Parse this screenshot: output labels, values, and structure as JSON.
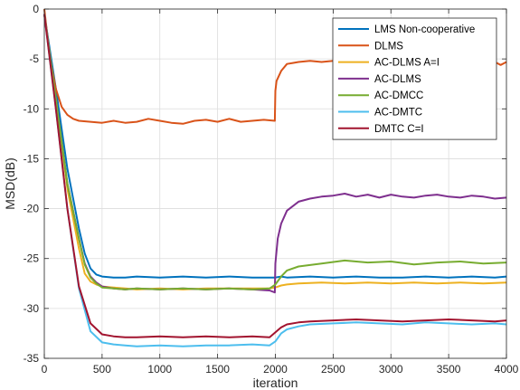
{
  "chart_data": {
    "type": "line",
    "xlabel": "iteration",
    "ylabel": "MSD(dB)",
    "xlim": [
      0,
      4000
    ],
    "ylim": [
      -35,
      0
    ],
    "xticks": [
      0,
      500,
      1000,
      1500,
      2000,
      2500,
      3000,
      3500,
      4000
    ],
    "yticks": [
      -35,
      -30,
      -25,
      -20,
      -15,
      -10,
      -5,
      0
    ],
    "grid": true,
    "legend_position": "top-right",
    "series": [
      {
        "name": "LMS Non-cooperative",
        "color": "#0072BD",
        "x": [
          0,
          100,
          200,
          300,
          350,
          400,
          450,
          500,
          600,
          700,
          800,
          1000,
          1200,
          1400,
          1600,
          1800,
          1950,
          2000,
          2050,
          2100,
          2300,
          2500,
          2700,
          2900,
          3100,
          3300,
          3500,
          3700,
          3900,
          4000
        ],
        "y": [
          -0.5,
          -8,
          -16,
          -22,
          -24.5,
          -26,
          -26.6,
          -26.8,
          -26.9,
          -26.9,
          -26.8,
          -26.9,
          -26.8,
          -26.9,
          -26.8,
          -26.9,
          -26.9,
          -26.9,
          -26.8,
          -26.9,
          -26.8,
          -26.9,
          -26.8,
          -26.9,
          -26.9,
          -26.8,
          -26.9,
          -26.8,
          -26.9,
          -26.8
        ]
      },
      {
        "name": "DLMS",
        "color": "#D95319",
        "x": [
          0,
          50,
          100,
          150,
          200,
          250,
          300,
          400,
          500,
          600,
          700,
          800,
          900,
          1000,
          1100,
          1200,
          1300,
          1400,
          1500,
          1600,
          1700,
          1800,
          1900,
          1995,
          2000,
          2010,
          2050,
          2100,
          2150,
          2200,
          2300,
          2400,
          2500,
          2600,
          2700,
          2800,
          2900,
          3000,
          3100,
          3200,
          3300,
          3400,
          3500,
          3600,
          3700,
          3800,
          3900,
          3950,
          4000
        ],
        "y": [
          0,
          -5,
          -8,
          -9.8,
          -10.6,
          -11,
          -11.2,
          -11.3,
          -11.4,
          -11.2,
          -11.4,
          -11.3,
          -11.0,
          -11.2,
          -11.4,
          -11.5,
          -11.2,
          -11.1,
          -11.3,
          -11.0,
          -11.3,
          -11.2,
          -11.1,
          -11.2,
          -8.2,
          -7.2,
          -6.2,
          -5.5,
          -5.4,
          -5.3,
          -5.2,
          -5.3,
          -5.2,
          -5.1,
          -5.2,
          -5.3,
          -5.1,
          -5.2,
          -5.3,
          -5.1,
          -5.2,
          -5.4,
          -5.2,
          -5.3,
          -5.1,
          -5.2,
          -5.3,
          -5.6,
          -5.3
        ]
      },
      {
        "name": "AC-DLMS A=I",
        "color": "#EDB120",
        "x": [
          0,
          100,
          200,
          300,
          350,
          400,
          450,
          500,
          600,
          700,
          800,
          1000,
          1200,
          1400,
          1600,
          1800,
          1950,
          2000,
          2050,
          2100,
          2200,
          2400,
          2600,
          2800,
          3000,
          3200,
          3400,
          3600,
          3800,
          4000
        ],
        "y": [
          -0.5,
          -9,
          -18,
          -24,
          -26.5,
          -27.3,
          -27.6,
          -27.8,
          -27.9,
          -28.0,
          -28.1,
          -28.0,
          -28.1,
          -28.0,
          -28.0,
          -28.0,
          -28.0,
          -27.9,
          -27.7,
          -27.6,
          -27.5,
          -27.4,
          -27.5,
          -27.4,
          -27.5,
          -27.4,
          -27.5,
          -27.4,
          -27.5,
          -27.4
        ]
      },
      {
        "name": "AC-DLMS",
        "color": "#7E2F8E",
        "x": [
          0,
          100,
          200,
          300,
          350,
          400,
          450,
          500,
          600,
          700,
          800,
          1000,
          1200,
          1400,
          1600,
          1800,
          1950,
          1995,
          2000,
          2020,
          2050,
          2100,
          2200,
          2300,
          2400,
          2500,
          2600,
          2700,
          2800,
          2900,
          3000,
          3100,
          3200,
          3300,
          3400,
          3500,
          3600,
          3700,
          3800,
          3900,
          4000
        ],
        "y": [
          -0.5,
          -9,
          -17.5,
          -23,
          -25.5,
          -26.8,
          -27.4,
          -27.8,
          -28.0,
          -28.1,
          -28.0,
          -28.1,
          -28.0,
          -28.1,
          -28.0,
          -28.1,
          -28.2,
          -28.4,
          -25.5,
          -23.0,
          -21.5,
          -20.2,
          -19.3,
          -19.0,
          -18.8,
          -18.7,
          -18.5,
          -18.8,
          -18.6,
          -18.9,
          -18.6,
          -18.8,
          -18.9,
          -18.7,
          -18.6,
          -18.8,
          -18.9,
          -18.7,
          -18.8,
          -19.0,
          -18.9
        ]
      },
      {
        "name": "AC-DMCC",
        "color": "#77AC30",
        "x": [
          0,
          100,
          200,
          300,
          350,
          400,
          450,
          500,
          600,
          700,
          800,
          1000,
          1200,
          1400,
          1600,
          1800,
          1950,
          2000,
          2050,
          2100,
          2200,
          2400,
          2600,
          2800,
          3000,
          3200,
          3400,
          3600,
          3800,
          4000
        ],
        "y": [
          -0.5,
          -9,
          -17.5,
          -23,
          -25.6,
          -26.9,
          -27.5,
          -27.9,
          -28.0,
          -28.1,
          -28.0,
          -28.1,
          -28.0,
          -28.1,
          -28.0,
          -28.1,
          -28.0,
          -27.6,
          -26.8,
          -26.2,
          -25.8,
          -25.5,
          -25.2,
          -25.4,
          -25.3,
          -25.6,
          -25.4,
          -25.3,
          -25.5,
          -25.4
        ]
      },
      {
        "name": "AC-DMTC",
        "color": "#4DBEEE",
        "x": [
          0,
          100,
          200,
          300,
          400,
          500,
          600,
          700,
          800,
          1000,
          1200,
          1400,
          1600,
          1800,
          1950,
          2000,
          2050,
          2100,
          2200,
          2300,
          2500,
          2700,
          2900,
          3100,
          3300,
          3500,
          3700,
          3900,
          4000
        ],
        "y": [
          -0.5,
          -10,
          -20,
          -28,
          -32.3,
          -33.4,
          -33.6,
          -33.7,
          -33.8,
          -33.7,
          -33.8,
          -33.7,
          -33.7,
          -33.6,
          -33.7,
          -33.3,
          -32.5,
          -32.1,
          -31.8,
          -31.6,
          -31.5,
          -31.4,
          -31.5,
          -31.6,
          -31.4,
          -31.5,
          -31.6,
          -31.5,
          -31.6
        ]
      },
      {
        "name": "DMTC C=I",
        "color": "#A2142F",
        "x": [
          0,
          100,
          200,
          300,
          400,
          500,
          600,
          700,
          800,
          1000,
          1200,
          1400,
          1600,
          1800,
          1950,
          2000,
          2050,
          2100,
          2200,
          2300,
          2500,
          2700,
          2900,
          3100,
          3300,
          3500,
          3700,
          3900,
          4000
        ],
        "y": [
          -0.5,
          -10,
          -20,
          -27.8,
          -31.5,
          -32.6,
          -32.8,
          -32.9,
          -32.9,
          -32.8,
          -32.9,
          -32.8,
          -32.9,
          -32.8,
          -32.9,
          -32.4,
          -31.9,
          -31.6,
          -31.4,
          -31.3,
          -31.2,
          -31.1,
          -31.2,
          -31.3,
          -31.2,
          -31.1,
          -31.2,
          -31.3,
          -31.2
        ]
      }
    ]
  }
}
